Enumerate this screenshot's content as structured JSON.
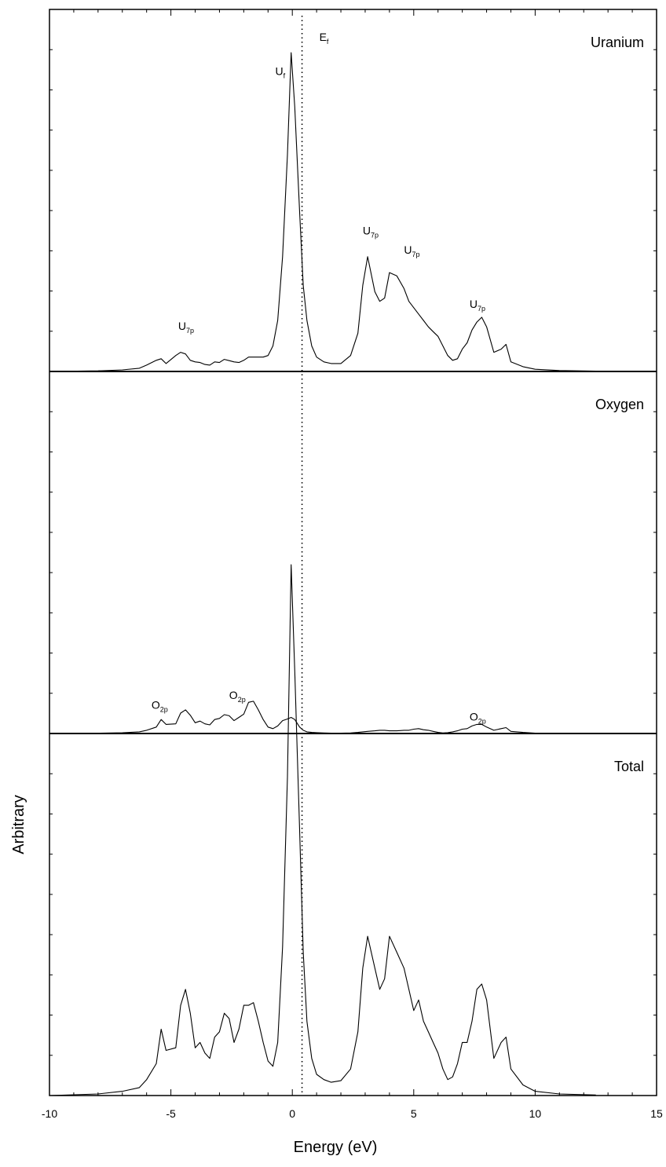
{
  "chart_data": {
    "type": "line",
    "xlabel": "Energy (eV)",
    "ylabel": "Arbitrary",
    "xlim": [
      -10,
      15
    ],
    "x_ticks": [
      -10,
      -5,
      0,
      5,
      10,
      15
    ],
    "fermi_level": 0.4,
    "fermi_label": "E",
    "fermi_label_sub": "f",
    "grid": false,
    "panels": [
      {
        "title": "Uranium",
        "ylim": [
          0,
          1.0
        ],
        "series": [
          {
            "x": [
              -10,
              -8,
              -7,
              -6.3,
              -6,
              -5.6,
              -5.4,
              -5.2,
              -4.8,
              -4.6,
              -4.4,
              -4.2,
              -4.0,
              -3.8,
              -3.6,
              -3.4,
              -3.2,
              -3.0,
              -2.8,
              -2.6,
              -2.4,
              -2.2,
              -2.0,
              -1.8,
              -1.6,
              -1.4,
              -1.2,
              -1.0,
              -0.8,
              -0.6,
              -0.4,
              -0.2,
              -0.05,
              0.1,
              0.3,
              0.45,
              0.6,
              0.8,
              1.0,
              1.3,
              1.6,
              2.0,
              2.4,
              2.7,
              2.9,
              3.1,
              3.4,
              3.6,
              3.8,
              4.0,
              4.3,
              4.6,
              4.8,
              5.0,
              5.2,
              5.4,
              5.6,
              5.8,
              6.0,
              6.2,
              6.4,
              6.6,
              6.8,
              7.0,
              7.2,
              7.4,
              7.6,
              7.8,
              8.0,
              8.3,
              8.6,
              8.8,
              9.0,
              9.5,
              10.0,
              11.0,
              12.5
            ],
            "y": [
              0,
              0.002,
              0.005,
              0.01,
              0.02,
              0.035,
              0.04,
              0.025,
              0.05,
              0.06,
              0.055,
              0.035,
              0.03,
              0.028,
              0.022,
              0.02,
              0.03,
              0.028,
              0.038,
              0.034,
              0.03,
              0.028,
              0.035,
              0.045,
              0.045,
              0.045,
              0.045,
              0.05,
              0.08,
              0.16,
              0.36,
              0.68,
              1.0,
              0.83,
              0.5,
              0.27,
              0.16,
              0.08,
              0.045,
              0.03,
              0.025,
              0.025,
              0.05,
              0.12,
              0.27,
              0.36,
              0.25,
              0.22,
              0.23,
              0.31,
              0.3,
              0.26,
              0.22,
              0.2,
              0.18,
              0.16,
              0.14,
              0.125,
              0.11,
              0.08,
              0.05,
              0.035,
              0.04,
              0.07,
              0.09,
              0.13,
              0.155,
              0.17,
              0.14,
              0.06,
              0.07,
              0.085,
              0.03,
              0.015,
              0.007,
              0.003,
              0.001
            ]
          }
        ],
        "annotations": [
          {
            "text": "U",
            "sub": "f",
            "x": -0.7,
            "y": 0.93
          },
          {
            "text": "U",
            "sub": "7p",
            "x": -4.7,
            "y": 0.13
          },
          {
            "text": "U",
            "sub": "7p",
            "x": 2.9,
            "y": 0.43
          },
          {
            "text": "U",
            "sub": "7p",
            "x": 4.6,
            "y": 0.37
          },
          {
            "text": "U",
            "sub": "7p",
            "x": 7.3,
            "y": 0.2
          }
        ]
      },
      {
        "title": "Oxygen",
        "ylim": [
          0,
          1.0
        ],
        "series": [
          {
            "x": [
              -10,
              -8,
              -7,
              -6.3,
              -6,
              -5.6,
              -5.4,
              -5.2,
              -4.8,
              -4.6,
              -4.4,
              -4.2,
              -4.0,
              -3.8,
              -3.6,
              -3.4,
              -3.2,
              -3.0,
              -2.8,
              -2.6,
              -2.4,
              -2.2,
              -2.0,
              -1.8,
              -1.6,
              -1.4,
              -1.2,
              -1.0,
              -0.8,
              -0.6,
              -0.4,
              -0.2,
              -0.05,
              0.1,
              0.3,
              0.45,
              0.6,
              0.8,
              1.0,
              1.3,
              1.6,
              2.0,
              2.4,
              2.7,
              2.9,
              3.1,
              3.4,
              3.6,
              3.8,
              4.0,
              4.3,
              4.6,
              4.8,
              5.0,
              5.2,
              5.4,
              5.6,
              5.8,
              6.0,
              6.2,
              6.4,
              6.6,
              6.8,
              7.0,
              7.2,
              7.4,
              7.6,
              7.8,
              8.0,
              8.3,
              8.6,
              8.8,
              9.0,
              9.5,
              10.0,
              11.0,
              12.5
            ],
            "y": [
              0,
              0.003,
              0.007,
              0.015,
              0.03,
              0.06,
              0.13,
              0.085,
              0.09,
              0.19,
              0.22,
              0.17,
              0.1,
              0.115,
              0.09,
              0.08,
              0.13,
              0.14,
              0.175,
              0.165,
              0.12,
              0.15,
              0.18,
              0.29,
              0.3,
              0.22,
              0.13,
              0.06,
              0.045,
              0.07,
              0.12,
              0.135,
              0.15,
              0.13,
              0.06,
              0.03,
              0.015,
              0.01,
              0.008,
              0.005,
              0.004,
              0.003,
              0.005,
              0.01,
              0.015,
              0.02,
              0.025,
              0.03,
              0.03,
              0.025,
              0.025,
              0.03,
              0.03,
              0.04,
              0.045,
              0.035,
              0.03,
              0.02,
              0.01,
              0.005,
              0.008,
              0.015,
              0.025,
              0.04,
              0.045,
              0.07,
              0.085,
              0.085,
              0.06,
              0.03,
              0.045,
              0.055,
              0.02,
              0.01,
              0.004,
              0.002,
              0.001
            ]
          }
        ],
        "annotations": [
          {
            "text": "O",
            "sub": "2p",
            "x": -5.8,
            "y": 0.23
          },
          {
            "text": "O",
            "sub": "2p",
            "x": -2.6,
            "y": 0.32
          },
          {
            "text": "O",
            "sub": "2p",
            "x": 7.3,
            "y": 0.12
          }
        ]
      },
      {
        "title": "Total",
        "ylim": [
          0,
          1.0
        ],
        "series": [
          {
            "x": [
              -10,
              -8,
              -7,
              -6.3,
              -6,
              -5.6,
              -5.4,
              -5.2,
              -4.8,
              -4.6,
              -4.4,
              -4.2,
              -4.0,
              -3.8,
              -3.6,
              -3.4,
              -3.2,
              -3.0,
              -2.8,
              -2.6,
              -2.4,
              -2.2,
              -2.0,
              -1.8,
              -1.6,
              -1.4,
              -1.2,
              -1.0,
              -0.8,
              -0.6,
              -0.4,
              -0.2,
              -0.05,
              0.1,
              0.3,
              0.45,
              0.6,
              0.8,
              1.0,
              1.3,
              1.6,
              2.0,
              2.4,
              2.7,
              2.9,
              3.1,
              3.4,
              3.6,
              3.8,
              4.0,
              4.3,
              4.6,
              4.8,
              5.0,
              5.2,
              5.4,
              5.6,
              5.8,
              6.0,
              6.2,
              6.4,
              6.6,
              6.8,
              7.0,
              7.2,
              7.4,
              7.6,
              7.8,
              8.0,
              8.3,
              8.6,
              8.8,
              9.0,
              9.5,
              10.0,
              11.0,
              12.5
            ],
            "y": [
              0,
              0.003,
              0.008,
              0.015,
              0.03,
              0.06,
              0.125,
              0.085,
              0.09,
              0.17,
              0.2,
              0.155,
              0.09,
              0.1,
              0.08,
              0.07,
              0.11,
              0.12,
              0.155,
              0.145,
              0.1,
              0.125,
              0.17,
              0.17,
              0.175,
              0.14,
              0.1,
              0.065,
              0.055,
              0.1,
              0.28,
              0.6,
              1.0,
              0.8,
              0.5,
              0.27,
              0.14,
              0.07,
              0.04,
              0.03,
              0.025,
              0.028,
              0.05,
              0.12,
              0.24,
              0.3,
              0.24,
              0.2,
              0.22,
              0.3,
              0.27,
              0.24,
              0.2,
              0.16,
              0.18,
              0.14,
              0.12,
              0.1,
              0.08,
              0.05,
              0.03,
              0.035,
              0.06,
              0.1,
              0.1,
              0.14,
              0.2,
              0.21,
              0.18,
              0.07,
              0.1,
              0.11,
              0.05,
              0.02,
              0.008,
              0.003,
              0.001
            ]
          }
        ],
        "annotations": []
      }
    ]
  }
}
